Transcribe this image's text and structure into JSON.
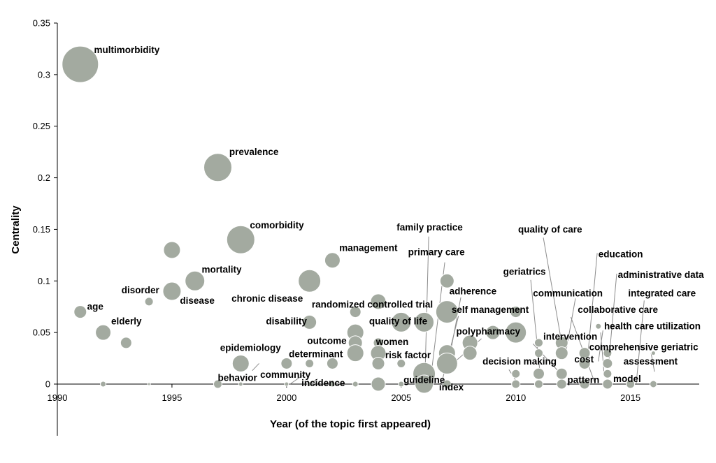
{
  "chart_data": {
    "type": "scatter",
    "title": "",
    "xlabel": "Year (of the topic first appeared)",
    "ylabel": "Centrality",
    "xlim": [
      1990,
      2018
    ],
    "ylim": [
      -0.05,
      0.35
    ],
    "xticks": [
      1990,
      1995,
      2000,
      2005,
      2010,
      2015
    ],
    "yticks": [
      0,
      0.05,
      0.1,
      0.15,
      0.2,
      0.25,
      0.3,
      0.35
    ],
    "ytick_labels": [
      "0",
      "0.05",
      "0.1",
      "0.15",
      "0.2",
      "0.25",
      "0.3",
      "0.35"
    ],
    "xtick_labels": [
      "1990",
      "1995",
      "2000",
      "2005",
      "2010",
      "2015"
    ],
    "bubble_color": "#a3aaa0",
    "points": [
      {
        "x": 1991,
        "y": 0.31,
        "r": 26,
        "label": "multimorbidity"
      },
      {
        "x": 1997,
        "y": 0.21,
        "r": 20,
        "label": "prevalence"
      },
      {
        "x": 1998,
        "y": 0.14,
        "r": 20,
        "label": "comorbidity"
      },
      {
        "x": 1995,
        "y": 0.13,
        "r": 12
      },
      {
        "x": 1996,
        "y": 0.1,
        "r": 14,
        "label": "mortality"
      },
      {
        "x": 1995,
        "y": 0.09,
        "r": 13,
        "label": "disease"
      },
      {
        "x": 1994,
        "y": 0.08,
        "r": 6,
        "label": "disorder"
      },
      {
        "x": 1991,
        "y": 0.07,
        "r": 9,
        "label": "age"
      },
      {
        "x": 1992,
        "y": 0.05,
        "r": 11,
        "label": "elderly"
      },
      {
        "x": 1993,
        "y": 0.04,
        "r": 8
      },
      {
        "x": 1992,
        "y": 0.0,
        "r": 4
      },
      {
        "x": 1994,
        "y": 0.0,
        "r": 2
      },
      {
        "x": 1997,
        "y": 0.0,
        "r": 6
      },
      {
        "x": 1998,
        "y": 0.02,
        "r": 12,
        "label": "epidemiology"
      },
      {
        "x": 1998,
        "y": 0.0,
        "r": 3,
        "label": "behavior"
      },
      {
        "x": 2000,
        "y": 0.02,
        "r": 8
      },
      {
        "x": 2000,
        "y": 0.0,
        "r": 3,
        "label": "community"
      },
      {
        "x": 2001,
        "y": 0.1,
        "r": 16,
        "label": "chronic disease"
      },
      {
        "x": 2001,
        "y": 0.06,
        "r": 10,
        "label": "disability"
      },
      {
        "x": 2001,
        "y": 0.02,
        "r": 6
      },
      {
        "x": 2001,
        "y": 0.0,
        "r": 3,
        "label": "incidence"
      },
      {
        "x": 2002,
        "y": 0.12,
        "r": 11,
        "label": "management"
      },
      {
        "x": 2002,
        "y": 0.02,
        "r": 8,
        "label": "determinant"
      },
      {
        "x": 2002,
        "y": 0.0,
        "r": 4
      },
      {
        "x": 2003,
        "y": 0.07,
        "r": 8
      },
      {
        "x": 2003,
        "y": 0.05,
        "r": 12
      },
      {
        "x": 2003,
        "y": 0.04,
        "r": 10,
        "label": "outcome"
      },
      {
        "x": 2003,
        "y": 0.03,
        "r": 12
      },
      {
        "x": 2003,
        "y": 0.0,
        "r": 4
      },
      {
        "x": 2004,
        "y": 0.08,
        "r": 11,
        "label": "randomized controlled trial"
      },
      {
        "x": 2004,
        "y": 0.04,
        "r": 7,
        "label": "women"
      },
      {
        "x": 2004,
        "y": 0.03,
        "r": 11
      },
      {
        "x": 2004,
        "y": 0.02,
        "r": 9
      },
      {
        "x": 2004,
        "y": 0.0,
        "r": 10
      },
      {
        "x": 2005,
        "y": 0.06,
        "r": 14,
        "label": "quality of life"
      },
      {
        "x": 2005,
        "y": 0.02,
        "r": 6,
        "label": "risk factor"
      },
      {
        "x": 2005,
        "y": 0.0,
        "r": 4
      },
      {
        "x": 2006,
        "y": 0.06,
        "r": 14,
        "label": "family practice"
      },
      {
        "x": 2006,
        "y": 0.01,
        "r": 16,
        "label": "guideline"
      },
      {
        "x": 2006,
        "y": 0.0,
        "r": 13
      },
      {
        "x": 2007,
        "y": 0.1,
        "r": 10
      },
      {
        "x": 2007,
        "y": 0.07,
        "r": 16,
        "label": "adherence"
      },
      {
        "x": 2007,
        "y": 0.03,
        "r": 12,
        "label": "primary care"
      },
      {
        "x": 2007,
        "y": 0.02,
        "r": 15
      },
      {
        "x": 2007,
        "y": 0.0,
        "r": 6,
        "label": "index"
      },
      {
        "x": 2008,
        "y": 0.04,
        "r": 11,
        "label": "self management"
      },
      {
        "x": 2008,
        "y": 0.03,
        "r": 10
      },
      {
        "x": 2009,
        "y": 0.05,
        "r": 10
      },
      {
        "x": 2010,
        "y": 0.07,
        "r": 8
      },
      {
        "x": 2010,
        "y": 0.05,
        "r": 15,
        "label": "polypharmacy"
      },
      {
        "x": 2010,
        "y": 0.01,
        "r": 6
      },
      {
        "x": 2010,
        "y": 0.0,
        "r": 6
      },
      {
        "x": 2011,
        "y": 0.04,
        "r": 6,
        "label": "geriatrics"
      },
      {
        "x": 2011,
        "y": 0.03,
        "r": 6
      },
      {
        "x": 2011,
        "y": 0.01,
        "r": 8,
        "label": "decision making"
      },
      {
        "x": 2011,
        "y": 0.0,
        "r": 6
      },
      {
        "x": 2012,
        "y": 0.04,
        "r": 9,
        "label": "quality of care"
      },
      {
        "x": 2012,
        "y": 0.03,
        "r": 9,
        "label": "communication"
      },
      {
        "x": 2012,
        "y": 0.01,
        "r": 8
      },
      {
        "x": 2012,
        "y": 0.0,
        "r": 7
      },
      {
        "x": 2013,
        "y": 0.03,
        "r": 8,
        "label": "intervention"
      },
      {
        "x": 2013,
        "y": 0.02,
        "r": 8,
        "label": "pattern"
      },
      {
        "x": 2013,
        "y": 0.0,
        "r": 7
      },
      {
        "x": 2013.6,
        "y": 0.056,
        "r": 4,
        "label": "collaborative care"
      },
      {
        "x": 2014,
        "y": 0.03,
        "r": 6,
        "label": "education"
      },
      {
        "x": 2014,
        "y": 0.02,
        "r": 7,
        "label": "administrative data"
      },
      {
        "x": 2014,
        "y": 0.01,
        "r": 6,
        "label": "cost"
      },
      {
        "x": 2014,
        "y": 0.0,
        "r": 7,
        "label": "model"
      },
      {
        "x": 2015,
        "y": 0.0,
        "r": 6,
        "label": "health care utilization"
      },
      {
        "x": 2016,
        "y": 0.03,
        "r": 3,
        "label": "integrated care"
      },
      {
        "x": 2016,
        "y": 0.0,
        "r": 5,
        "label": "comprehensive geriatric assessment"
      }
    ],
    "labels": [
      {
        "text": "multimorbidity",
        "x": 1991.6,
        "y": 0.321
      },
      {
        "text": "prevalence",
        "x": 1997.5,
        "y": 0.222
      },
      {
        "text": "comorbidity",
        "x": 1998.4,
        "y": 0.151
      },
      {
        "text": "management",
        "x": 2002.3,
        "y": 0.129
      },
      {
        "text": "mortality",
        "x": 1996.3,
        "y": 0.108
      },
      {
        "text": "disorder",
        "x": 1992.8,
        "y": 0.088
      },
      {
        "text": "disease",
        "x": 1995.35,
        "y": 0.078
      },
      {
        "text": "chronic disease",
        "x": 1997.6,
        "y": 0.08
      },
      {
        "text": "age",
        "x": 1991.3,
        "y": 0.072
      },
      {
        "text": "randomized controlled trial",
        "x": 2001.1,
        "y": 0.074
      },
      {
        "text": "family practice",
        "x": 2004.8,
        "y": 0.149
      },
      {
        "text": "primary care",
        "x": 2005.3,
        "y": 0.125
      },
      {
        "text": "quality of care",
        "x": 2010.1,
        "y": 0.147
      },
      {
        "text": "geriatrics",
        "x": 2009.45,
        "y": 0.106
      },
      {
        "text": "education",
        "x": 2013.6,
        "y": 0.123
      },
      {
        "text": "administrative data",
        "x": 2014.45,
        "y": 0.103
      },
      {
        "text": "communication",
        "x": 2010.75,
        "y": 0.085
      },
      {
        "text": "integrated care",
        "x": 2014.9,
        "y": 0.085
      },
      {
        "text": "adherence",
        "x": 2007.1,
        "y": 0.087
      },
      {
        "text": "collaborative care",
        "x": 2012.7,
        "y": 0.069
      },
      {
        "text": "self management",
        "x": 2007.2,
        "y": 0.069
      },
      {
        "text": "disability",
        "x": 1999.1,
        "y": 0.058
      },
      {
        "text": "quality of life",
        "x": 2003.6,
        "y": 0.058
      },
      {
        "text": "polypharmacy",
        "x": 2007.4,
        "y": 0.048
      },
      {
        "text": "health care utilization",
        "x": 2013.85,
        "y": 0.053
      },
      {
        "text": "elderly",
        "x": 1992.35,
        "y": 0.058
      },
      {
        "text": "intervention",
        "x": 2011.2,
        "y": 0.043
      },
      {
        "text": "outcome",
        "x": 2000.9,
        "y": 0.039
      },
      {
        "text": "women",
        "x": 2003.9,
        "y": 0.038
      },
      {
        "text": "comprehensive geriatric",
        "x": 2013.2,
        "y": 0.033
      },
      {
        "text": "epidemiology",
        "x": 1997.1,
        "y": 0.032
      },
      {
        "text": "cost",
        "x": 2012.55,
        "y": 0.021
      },
      {
        "text": "determinant",
        "x": 2000.1,
        "y": 0.026
      },
      {
        "text": "risk factor",
        "x": 2004.3,
        "y": 0.025
      },
      {
        "text": "assessment",
        "x": 2014.7,
        "y": 0.019
      },
      {
        "text": "decision making",
        "x": 2008.55,
        "y": 0.019
      },
      {
        "text": "behavior",
        "x": 1997.0,
        "y": 0.003
      },
      {
        "text": "community",
        "x": 1998.85,
        "y": 0.006
      },
      {
        "text": "pattern",
        "x": 2012.25,
        "y": 0.001
      },
      {
        "text": "model",
        "x": 2014.25,
        "y": 0.002
      },
      {
        "text": "guideline",
        "x": 2005.1,
        "y": 0.001
      },
      {
        "text": "incidence",
        "x": 2000.65,
        "y": -0.002
      },
      {
        "text": "index",
        "x": 2006.65,
        "y": -0.006
      }
    ],
    "leader_lines": [
      {
        "from": [
          2006.2,
          0.143
        ],
        "to": [
          2006.05,
          0.017
        ]
      },
      {
        "from": [
          2006.9,
          0.118
        ],
        "to": [
          2006.35,
          0.017
        ]
      },
      {
        "from": [
          2007.6,
          0.084
        ],
        "to": [
          2007.1,
          0.025
        ]
      },
      {
        "from": [
          2007.5,
          0.066
        ],
        "to": [
          2006.75,
          0.0
        ]
      },
      {
        "from": [
          2008.5,
          0.044
        ],
        "to": [
          2007.15,
          0.018
        ]
      },
      {
        "from": [
          2011.2,
          0.142
        ],
        "to": [
          2012.0,
          0.04
        ]
      },
      {
        "from": [
          2010.65,
          0.101
        ],
        "to": [
          2011.05,
          0.012
        ]
      },
      {
        "from": [
          2013.55,
          0.127
        ],
        "to": [
          2013.15,
          0.03
        ]
      },
      {
        "from": [
          2014.4,
          0.107
        ],
        "to": [
          2014.05,
          0.02
        ]
      },
      {
        "from": [
          2012.6,
          0.083
        ],
        "to": [
          2012.2,
          0.033
        ]
      },
      {
        "from": [
          2015.6,
          0.081
        ],
        "to": [
          2015.25,
          0.0
        ]
      },
      {
        "from": [
          2013.8,
          0.052
        ],
        "to": [
          2013.6,
          0.022
        ]
      },
      {
        "from": [
          2012.4,
          0.065
        ],
        "to": [
          2013.45,
          0.001
        ]
      },
      {
        "from": [
          2013.7,
          0.05
        ],
        "to": [
          2013.85,
          0.01
        ]
      },
      {
        "from": [
          2015.9,
          0.03
        ],
        "to": [
          2016.05,
          0.012
        ]
      },
      {
        "from": [
          2010.75,
          0.039
        ],
        "to": [
          2012.0,
          0.009
        ]
      },
      {
        "from": [
          2009.7,
          0.014
        ],
        "to": [
          2010.1,
          0.0
        ]
      },
      {
        "from": [
          1998.8,
          0.02
        ],
        "to": [
          1998.5,
          0.013
        ]
      },
      {
        "from": [
          2000.8,
          0.01
        ],
        "to": [
          2000.15,
          0.0
        ]
      },
      {
        "from": [
          2001.35,
          0.005
        ],
        "to": [
          2001.0,
          0.0
        ]
      },
      {
        "from": [
          2005.9,
          0.007
        ],
        "to": [
          2005.8,
          0.0
        ]
      }
    ]
  }
}
